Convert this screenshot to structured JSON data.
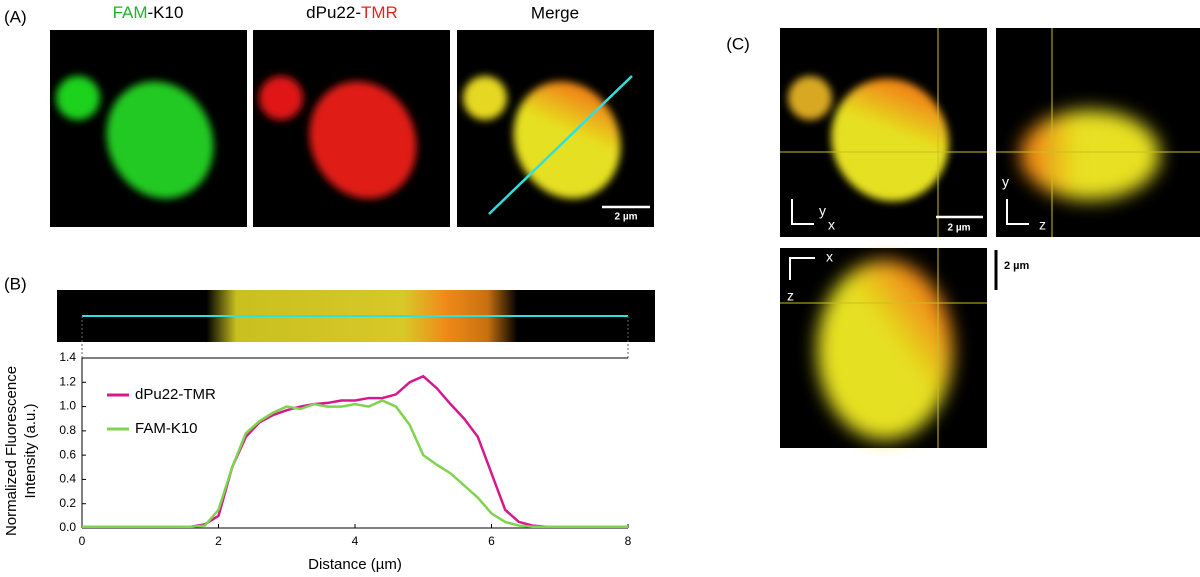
{
  "panels": {
    "a": {
      "label": "(A)",
      "titles": [
        [
          "FAM",
          "-K10"
        ],
        [
          "dPu22-",
          "TMR"
        ],
        [
          "Merge"
        ]
      ],
      "scale_bar": "2 µm"
    },
    "b": {
      "label": "(B)"
    },
    "c": {
      "label": "(C)",
      "axes": [
        "y",
        "x",
        "y",
        "z",
        "x",
        "z"
      ],
      "scale_bar": "2 µm",
      "z_scale_bar": "2 µm"
    }
  },
  "chart_data": {
    "type": "line",
    "x": [
      0,
      0.2,
      0.4,
      0.6,
      0.8,
      1,
      1.2,
      1.4,
      1.6,
      1.8,
      2,
      2.2,
      2.4,
      2.6,
      2.8,
      3,
      3.2,
      3.4,
      3.6,
      3.8,
      4,
      4.2,
      4.4,
      4.6,
      4.8,
      5,
      5.2,
      5.4,
      5.6,
      5.8,
      6,
      6.2,
      6.4,
      6.6,
      6.8,
      7,
      7.2,
      7.4,
      7.6,
      7.8,
      8
    ],
    "series": [
      {
        "name": "dPu22-TMR",
        "color": "#d6188f",
        "values": [
          0.01,
          0.01,
          0.01,
          0.01,
          0.01,
          0.01,
          0.01,
          0.01,
          0.01,
          0.03,
          0.1,
          0.5,
          0.75,
          0.87,
          0.93,
          0.97,
          1.0,
          1.02,
          1.03,
          1.05,
          1.05,
          1.07,
          1.07,
          1.1,
          1.2,
          1.25,
          1.15,
          1.02,
          0.9,
          0.75,
          0.45,
          0.15,
          0.05,
          0.02,
          0.01,
          0.01,
          0.01,
          0.01,
          0.01,
          0.01,
          0.01
        ]
      },
      {
        "name": "FAM-K10",
        "color": "#7fd34e",
        "values": [
          0.01,
          0.01,
          0.01,
          0.01,
          0.01,
          0.01,
          0.01,
          0.01,
          0.01,
          0.02,
          0.15,
          0.5,
          0.78,
          0.88,
          0.95,
          1.0,
          0.98,
          1.02,
          1.0,
          1.0,
          1.02,
          1.0,
          1.05,
          1.0,
          0.85,
          0.6,
          0.52,
          0.45,
          0.35,
          0.25,
          0.12,
          0.05,
          0.02,
          0.01,
          0.01,
          0.01,
          0.01,
          0.01,
          0.01,
          0.01,
          0.01
        ]
      }
    ],
    "xlim": [
      0,
      8
    ],
    "ylim": [
      0,
      1.4
    ],
    "xticks": [
      0,
      2,
      4,
      6,
      8
    ],
    "yticks": [
      {
        "value": 0,
        "label": "0.0"
      },
      {
        "value": 0.2,
        "label": "0.2"
      },
      {
        "value": 0.4,
        "label": "0.4"
      },
      {
        "value": 0.6,
        "label": "0.6"
      },
      {
        "value": 0.8,
        "label": "0.8"
      },
      {
        "value": 1,
        "label": "1.0"
      },
      {
        "value": 1.2,
        "label": "1.2"
      },
      {
        "value": 1.4,
        "label": "1.4"
      }
    ],
    "x_label": "Distance (µm)",
    "y_label": [
      "Normalized Fluorescence",
      "Intensity (a.u.)"
    ],
    "legend": "upper left"
  }
}
